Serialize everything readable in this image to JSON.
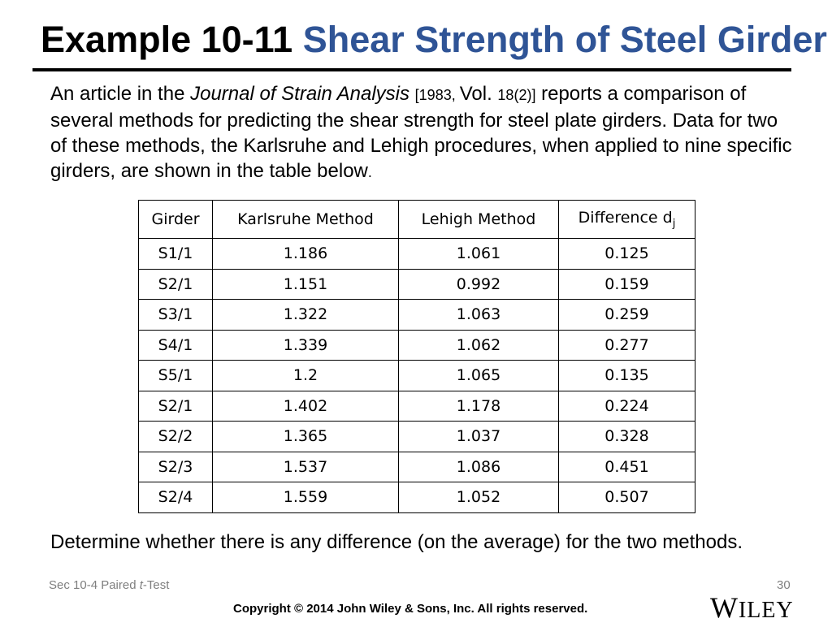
{
  "header": {
    "title_prefix": "Example 10-11 ",
    "title_accent": "Shear Strength of Steel Girder",
    "accent_color": "#2f5496"
  },
  "intro": {
    "part1": "An article in the ",
    "journal": "Journal of Strain Analysis",
    "part2": " ",
    "cite1": "[1983, ",
    "vol": "Vol. ",
    "cite2": "18(2)]",
    "part3": " reports a comparison of several methods for predicting the shear strength for steel plate girders. Data for two of these methods, the Karlsruhe and Lehigh procedures, when applied to nine specific girders, are shown in the table below",
    "period": "."
  },
  "table": {
    "headers": [
      "Girder",
      "Karlsruhe Method",
      "Lehigh Method",
      "Difference d"
    ],
    "diff_subscript": "j",
    "rows": [
      [
        "S1/1",
        "1.186",
        "1.061",
        "0.125"
      ],
      [
        "S2/1",
        "1.151",
        "0.992",
        "0.159"
      ],
      [
        "S3/1",
        "1.322",
        "1.063",
        "0.259"
      ],
      [
        "S4/1",
        "1.339",
        "1.062",
        "0.277"
      ],
      [
        "S5/1",
        "1.2",
        "1.065",
        "0.135"
      ],
      [
        "S2/1",
        "1.402",
        "1.178",
        "0.224"
      ],
      [
        "S2/2",
        "1.365",
        "1.037",
        "0.328"
      ],
      [
        "S2/3",
        "1.537",
        "1.086",
        "0.451"
      ],
      [
        "S2/4",
        "1.559",
        "1.052",
        "0.507"
      ]
    ]
  },
  "question": "Determine whether there is any difference (on the average) for the two methods.",
  "footer": {
    "section_prefix": "Sec 10-4 Paired ",
    "section_italic": "t",
    "section_suffix": "-Test",
    "page_number": "30",
    "copyright": "Copyright © 2014 John Wiley & Sons, Inc. All rights reserved.",
    "logo_first": "W",
    "logo_rest": "ILEY"
  }
}
